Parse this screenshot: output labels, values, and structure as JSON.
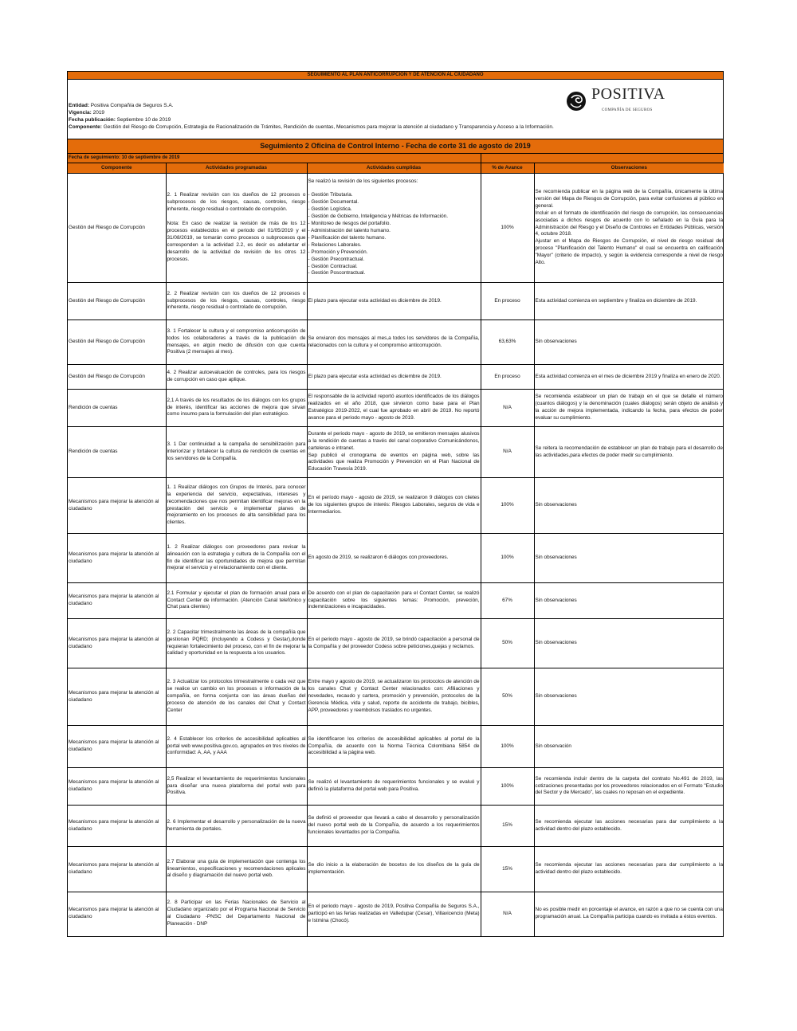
{
  "header": {
    "title": "SEGUIMIENTO AL PLAN ANTICORRUPCIÓN Y DE ATENCIÓN AL CIUDADANO",
    "entidad_label": "Entidad:",
    "entidad": " Positiva Compañía de Seguros S.A.",
    "vigencia_label": "Vigencia:",
    "vigencia": " 2019",
    "fecha_pub_label": "Fecha publicación:",
    "fecha_pub": " Septiembre 10 de 2019",
    "componente_label": "Componente:",
    "componente": " Gestión del Riesgo de Corrupción,  Estrategia de Racionalización de Trámites, Rendición de cuentas, Mecanismos para mejorar la atención al ciudadano y Transparencia y Acceso a la Información.",
    "logo_word": "POSITIVA",
    "logo_sub": "COMPAÑÍA DE SEGUROS",
    "accent_color": "#e46c0a"
  },
  "seguimiento": {
    "title": "Seguimiento 2 Oficina de Control Interno -  Fecha de corte 31 de agosto de 2019",
    "fecha": "Fecha de seguimiento: 10 de septiembre de 2019"
  },
  "columns": [
    "Componente",
    "Actividades programadas",
    "Actividades cumplidas",
    "% de Avance",
    "Observaciones"
  ],
  "rows": [
    {
      "componente": "Gestión del Riesgo de Corrupción",
      "programadas": "2. 1 Realizar revisión con los dueños de 12 procesos o subprocesos de los riesgos, causas, controles, riesgo inherente, riesgo residual o controlado  de corrupción.\n\nNota: En caso de realizar la revisión de más de los 12 procesos establecidos en el periodo del 01/05/2019 y el 31/08/2019, se tomarán como procesos o subprocesos que corresponden a la actividad 2.2, es decir es adelantar el desarrollo de la actividad de revisión de los otros 12 procesos.",
      "cumplidas": "Se realizó la revisión de los siguientes procesos:\n\n- Gestión Tributaria.\n- Gestión Documental.\n- Gestión Logística.\n- Gestión de Gobierno, Inteligencia y Métricas de Información.\n- Monitoreo de riesgos del portafolio.\n- Administración del talento humano.\n- Planificación del talento humano.\n- Relaciones Laborales.\n- Promoción y Prevención.\n- Gestión Precontractual.\n- Gestión Contractual.\n- Gestión Poscontractual.",
      "avance": "100%",
      "observaciones": "Se recomienda publicar en la página web de la Compañía, únicamente la última versión del Mapa de Riesgos de Corrupción, para evitar confusiones al público en general.\nIncluir en el formato de identificación del riesgo de corrupción, las consecuencias asociadas a dichos riesgos de acuerdo con lo señalado en la Guía para la Administración del Riesgo y el Diseño de Controles en Entidades Públicas, versión 4, octubre 2018.\nAjustar en el Mapa de Riesgos de Corrupción, el nivel de riesgo residual del proceso \"Planificación del Talento Humano\" el cual se encuentra en calificación \"Mayor\" (criterio de impacto), y según la evidencia corresponde a nivel de riesgo Alto."
    },
    {
      "componente": "Gestión del Riesgo de Corrupción",
      "programadas": "2. 2 Realizar revisión con los dueños de 12 procesos o subprocesos de los riesgos, causas, controles, riesgo inherente, riesgo residual o controlado  de corrupción.",
      "cumplidas": "El plazo para ejecutar esta actividad es diciembre de 2019.",
      "avance": "En proceso",
      "observaciones": "Esta actividad comienza en septiembre y finaliza en diciembre de 2019."
    },
    {
      "componente": "Gestión del Riesgo de Corrupción",
      "programadas": "3. 1 Fortalecer la cultura y el compromiso anticorrupción de todos los colaboradores a través de la publicación de mensajes, en algún medio de difusión con que cuenta Positiva (2 mensajes al mes).",
      "cumplidas": "Se enviaron dos mensajes al mes,a todos los servidores de la Compañía, relacionados con la cultura y el compromiso anticorrupción.",
      "avance": "63,63%",
      "observaciones": "Sin observaciones"
    },
    {
      "componente": "Gestión del Riesgo de Corrupción",
      "programadas": "4. 2 Realizar autoevaluación de controles, para los riesgos de corrupción en caso que aplique.",
      "cumplidas": "El plazo para ejecutar esta actividad es diciembre de 2019.",
      "avance": "En proceso",
      "observaciones": "Esta actividad comienza en el mes de diciembre 2019 y finaliza en enero de 2020."
    },
    {
      "componente": "Rendición de cuentas",
      "programadas": "2,1 A través de los resultados de los diálogos con los grupos de interés, identificar las acciones de mejora que sirvan como insumo para la formulación del plan estratégico.",
      "cumplidas": "El responsable de la actividad reportó asuntos identificados de los diálogos realizados en el año 2018, que sirvieron como base para el Plan Estratégico 2019-2022, el cual fue aprobado en abril de 2019. No reportó avance para el periodo mayo - agosto de 2019.",
      "avance": "N/A",
      "observaciones": "Se recomienda establecer un plan de trabajo en el que se detalle el número (cuantos diálogos) y la denominación (cuales diálogos) serán objeto de análisis y la acción de mejora implementada, indicando la fecha, para efectos de poder evaluar su cumplimiento."
    },
    {
      "componente": "Rendición de cuentas",
      "programadas": "3. 1 Dar continuidad a la campaña de sensibilización para interiorizar y fortalecer la cultura de rendición de cuentas en los servidores de la Compañía.",
      "cumplidas": "Durante el periodo mayo - agosto de 2019, se emitieron mensajes alusivos a la rendición de cuentas a través del canal corporativo Comunicándonos, carteleras  e intranet.\nSep publicó el cronograma de eventos en página web, sobre las actividades que realiza Promoción  y Prevención en el Plan Nacional de Educación Travesía 2019.",
      "avance": "N/A",
      "observaciones": "Se reitera la recomendación de establecer un plan de trabajo para el desarrollo de las actividades,para efectos de poder medir su cumplimiento."
    },
    {
      "componente": "Mecanismos para mejorar la atención al ciudadano",
      "programadas": "1. 1 Realizar diálogos con Grupos de Interés, para conocer la experiencia del servicio, expectativas, intereses y recomendaciones que nos permitan identificar mejoras en la prestación del servicio e implementar planes de mejoramiento en los procesos de alta sensibilidad para los clientes.",
      "cumplidas": "En el período mayo - agosto de 2019, se realizaron 9 diálogos con clietes de los siguientes grupos de interés: Riesgos Laborales, seguros de vida e Intermediarios.",
      "avance": "100%",
      "observaciones": "Sin observaciones"
    },
    {
      "componente": "Mecanismos para mejorar la atención al ciudadano",
      "programadas": "1. 2 Realizar diálogos con proveedores para revisar la alineación con la estrategia y cultura de la Compañía con el fin de identificar las oportunidades de mejora que permitan mejorar el servicio y el relacionamiento con el cliente.",
      "cumplidas": "En agosto de 2019, se realizaron 6 diálogos con proveedores.",
      "avance": "100%",
      "observaciones": "Sin observaciones"
    },
    {
      "componente": "Mecanismos para mejorar la atención al ciudadano",
      "programadas": "2.1 Formular y ejecutar el plan de formación anual para el Contact Center de información. (Atención Canal telefónico y Chat para clientes)",
      "cumplidas": "De acuerdo con el plan de capacitación para el Contact Center, se realizó capacitación sobre los siguientes temas: Promoción, preveción, indemnizaciones e incapacidades.",
      "avance": "67%",
      "observaciones": "Sin observaciones"
    },
    {
      "componente": "Mecanismos para mejorar la atención al ciudadano",
      "programadas": "2. 2 Capacitar trimestralmente las áreas de la compañía que gestionan PQRD; (incluyendo a Codess y Gestar),donde requieran fortalecimiento del proceso,  con el fin de mejorar la calidad y oportunidad en la respuesta a los usuarios.",
      "cumplidas": "En el periodo mayo - agosto de 2019, se brindó capacitación a personal de la Compañía y del proveedor  Codess sobre peticiones,quejas y reclamos.",
      "avance": "50%",
      "observaciones": "Sin observaciones"
    },
    {
      "componente": "Mecanismos para mejorar la atención al ciudadano",
      "programadas": "2. 3 Actualizar los protocolos trimestralmente o cada vez que se realice un cambio en los procesos o información de la compañía, en forma conjunta con las áreas dueñas del proceso de atención de los canales del Chat y Contact Center",
      "cumplidas": "Entre mayo y agosto de 2019, se actualizaron los protocolos de atención de los canales Chat y Contact Center relacionados con: Afiliaciones y novedades, recaudo y cartera, promoción  y prevención, protocolos de la Gerencia Médica, vida y salud, reporte de accidente de trabajo, bicibles, APP, proveedores y reembolsos traslados no urgentes.",
      "avance": "50%",
      "observaciones": "Sin observaciones"
    },
    {
      "componente": "Mecanismos para mejorar la atención al ciudadano",
      "programadas": "2. 4 Establecer los criterios de accesibilidad aplicables al portal web www.positiva.gov.co, agrupados en tres niveles de conformidad: A, AA, y AAA",
      "cumplidas": "Se identificaron los criterios de accesibilidad aplicables al portal de la Compañía, de acuerdo con la Norma Técnica Colombiana 5854 de accesibilidad a la página web.",
      "avance": "100%",
      "observaciones": "Sin observación"
    },
    {
      "componente": "Mecanismos para mejorar la atención al ciudadano",
      "programadas": "2,5 Realizar el levantamiento de requerimientos funcionales para diseñar una nueva plataforma del portal web para Positiva.",
      "cumplidas": "Se realizó el levantamiento de requerimientos funcionales y se evaluó y definió la plataforma del portal web para Positiva.",
      "avance": "100%",
      "observaciones": "Se recomienda incluir dentro de la carpeta del contrato No.491 de 2019, las cotizaciones presentadas por  los proveedores relacionados en el Formato \"Estudio del Sector y de Mercado\", las cuales no reposan en el expediente."
    },
    {
      "componente": "Mecanismos para mejorar la atención al ciudadano",
      "programadas": "2. 6 Implementar el desarrollo y personalización de la nueva herramienta de portales.",
      "cumplidas": "Se definió el proveedor que llevará a cabo el desarrollo y personalización del nuevo portal web de la Compañía, de acuerdo a los requerimientos funcionales levantados por la Compañía.",
      "avance": "15%",
      "observaciones": "Se recomienda ejecutar las acciones necesarias para dar cumplimiento a la actividad dentro del plazo establecido."
    },
    {
      "componente": "Mecanismos para mejorar la atención al ciudadano",
      "programadas": "2.7 Elaborar una guía de implementación que contenga los lineamientos, especificaciones  y recomendaciones aplicales al diseño y diagramación del nuevo portal web.",
      "cumplidas": "Se dio inicio a la elaboración de bocetos de los diseños de la guía de implementación.",
      "avance": "15%",
      "observaciones": "Se recomienda ejecutar las acciones necesarias para dar cumplimiento a la actividad dentro del plazo establecido."
    },
    {
      "componente": "Mecanismos para mejorar la atención al ciudadano",
      "programadas": "2. 8 Participar en las Ferias Nacionales de Servicio al Ciudadano organizado por el Programa Nacional de Servicio al Ciudadano -PNSC del Departamento Nacional de Planeación - DNP",
      "cumplidas": "En el periodo mayo - agosto  de 2019, Positiva Compañía de Seguros S.A., participó en las ferias realizadas en  Valledupar (Cesar), Villavicencio (Meta) e  Istmina (Chocó).",
      "avance": "N/A",
      "observaciones": "No es posible medir en porcentaje el avance, en razón a que no se cuenta con una programación anual. La Compañía participa cuando es invitada a éstos eventos."
    }
  ]
}
